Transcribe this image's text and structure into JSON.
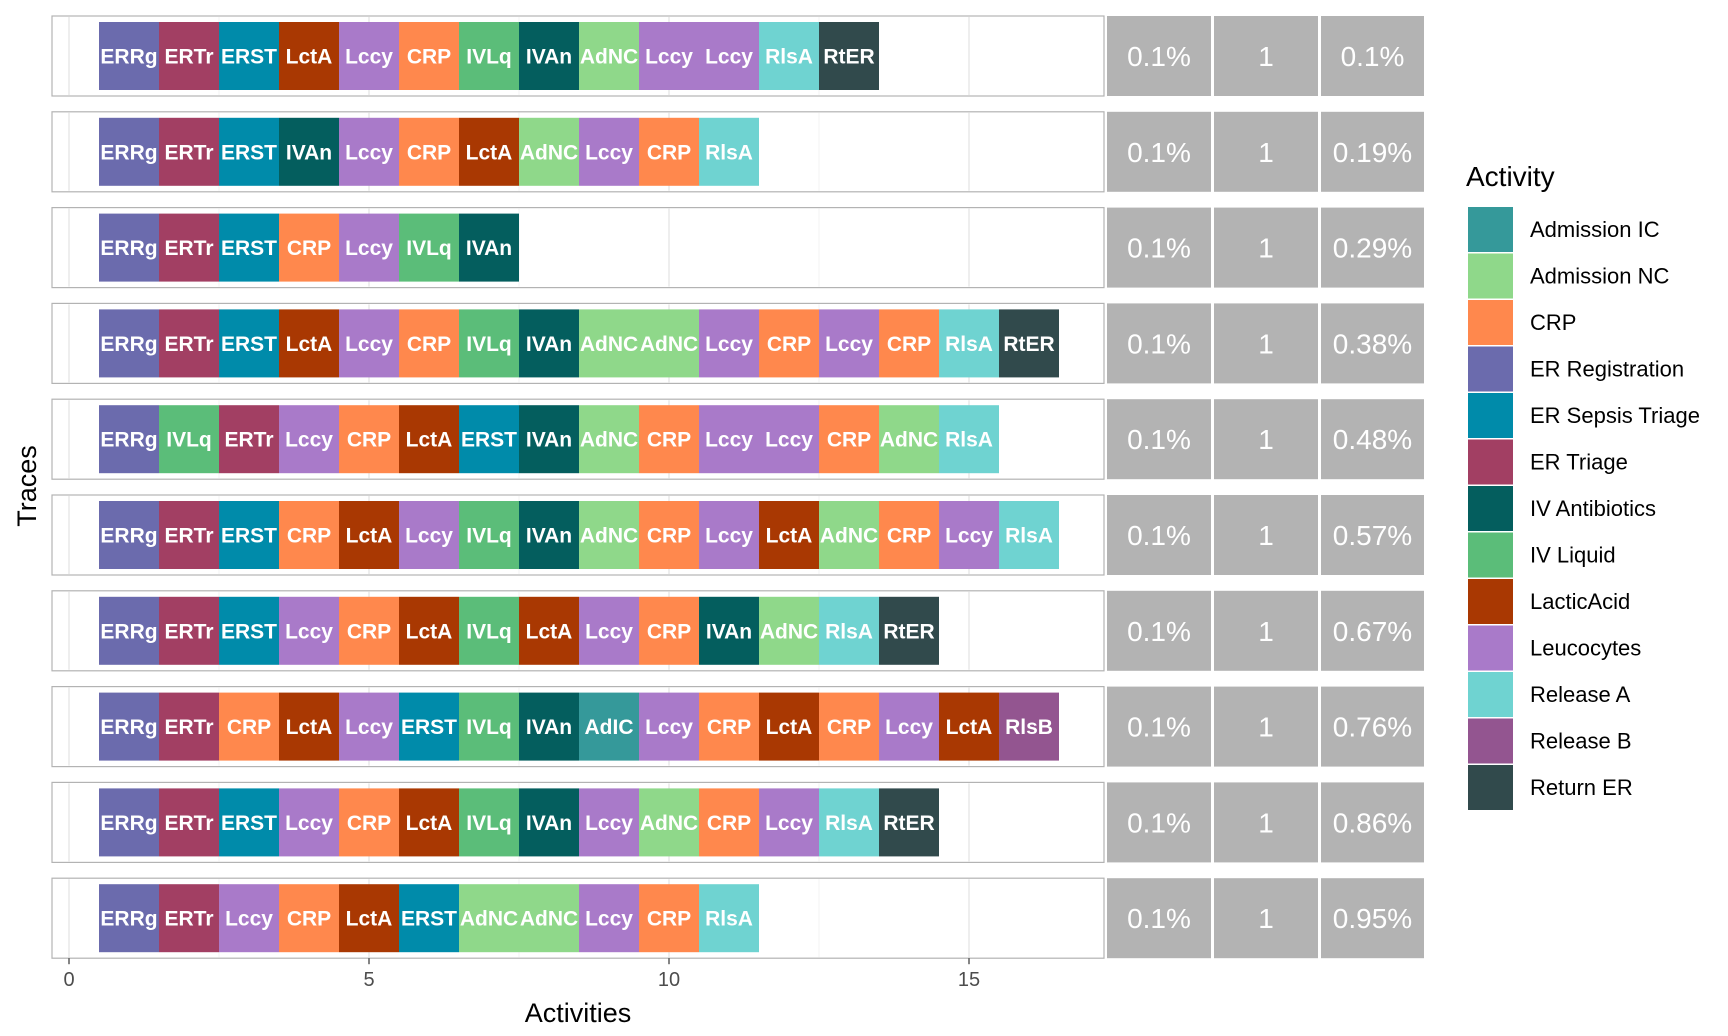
{
  "chart_data": {
    "type": "trace-explorer",
    "xlabel": "Activities",
    "ylabel": "Traces",
    "xlim": [
      -0.3,
      17.2
    ],
    "xticks": [
      0,
      5,
      10,
      15
    ],
    "grid": true,
    "legend_placement": "right",
    "legend": {
      "title": "Activity",
      "entries": [
        {
          "name": "Admission IC",
          "abbr": "AdIC",
          "color": "#35999A"
        },
        {
          "name": "Admission NC",
          "abbr": "AdNC",
          "color": "#8FD88A"
        },
        {
          "name": "CRP",
          "abbr": "CRP",
          "color": "#FF884D"
        },
        {
          "name": "ER Registration",
          "abbr": "ERRg",
          "color": "#6B6BAD"
        },
        {
          "name": "ER Sepsis Triage",
          "abbr": "ERST",
          "color": "#008BAA"
        },
        {
          "name": "ER Triage",
          "abbr": "ERTr",
          "color": "#A23F63"
        },
        {
          "name": "IV Antibiotics",
          "abbr": "IVAn",
          "color": "#045E5E"
        },
        {
          "name": "IV Liquid",
          "abbr": "IVLq",
          "color": "#5BBD79"
        },
        {
          "name": "LacticAcid",
          "abbr": "LctA",
          "color": "#A93802"
        },
        {
          "name": "Leucocytes",
          "abbr": "Lccy",
          "color": "#A97AC9"
        },
        {
          "name": "Release A",
          "abbr": "RlsA",
          "color": "#6FD3D1"
        },
        {
          "name": "Release B",
          "abbr": "RlsB",
          "color": "#935590"
        },
        {
          "name": "Return ER",
          "abbr": "RtER",
          "color": "#314A4C"
        }
      ]
    },
    "traces": [
      {
        "activities": [
          "ERRg",
          "ERTr",
          "ERST",
          "LctA",
          "Lccy",
          "CRP",
          "IVLq",
          "IVAn",
          "AdNC",
          "Lccy",
          "Lccy",
          "RlsA",
          "RtER"
        ],
        "relative_frequency": "0.1%",
        "absolute_frequency": "1",
        "cumulative": "0.1%"
      },
      {
        "activities": [
          "ERRg",
          "ERTr",
          "ERST",
          "IVAn",
          "Lccy",
          "CRP",
          "LctA",
          "AdNC",
          "Lccy",
          "CRP",
          "RlsA"
        ],
        "relative_frequency": "0.1%",
        "absolute_frequency": "1",
        "cumulative": "0.19%"
      },
      {
        "activities": [
          "ERRg",
          "ERTr",
          "ERST",
          "CRP",
          "Lccy",
          "IVLq",
          "IVAn"
        ],
        "relative_frequency": "0.1%",
        "absolute_frequency": "1",
        "cumulative": "0.29%"
      },
      {
        "activities": [
          "ERRg",
          "ERTr",
          "ERST",
          "LctA",
          "Lccy",
          "CRP",
          "IVLq",
          "IVAn",
          "AdNC",
          "AdNC",
          "Lccy",
          "CRP",
          "Lccy",
          "CRP",
          "RlsA",
          "RtER"
        ],
        "relative_frequency": "0.1%",
        "absolute_frequency": "1",
        "cumulative": "0.38%"
      },
      {
        "activities": [
          "ERRg",
          "IVLq",
          "ERTr",
          "Lccy",
          "CRP",
          "LctA",
          "ERST",
          "IVAn",
          "AdNC",
          "CRP",
          "Lccy",
          "Lccy",
          "CRP",
          "AdNC",
          "RlsA"
        ],
        "relative_frequency": "0.1%",
        "absolute_frequency": "1",
        "cumulative": "0.48%"
      },
      {
        "activities": [
          "ERRg",
          "ERTr",
          "ERST",
          "CRP",
          "LctA",
          "Lccy",
          "IVLq",
          "IVAn",
          "AdNC",
          "CRP",
          "Lccy",
          "LctA",
          "AdNC",
          "CRP",
          "Lccy",
          "RlsA"
        ],
        "relative_frequency": "0.1%",
        "absolute_frequency": "1",
        "cumulative": "0.57%"
      },
      {
        "activities": [
          "ERRg",
          "ERTr",
          "ERST",
          "Lccy",
          "CRP",
          "LctA",
          "IVLq",
          "LctA",
          "Lccy",
          "CRP",
          "IVAn",
          "AdNC",
          "RlsA",
          "RtER"
        ],
        "relative_frequency": "0.1%",
        "absolute_frequency": "1",
        "cumulative": "0.67%"
      },
      {
        "activities": [
          "ERRg",
          "ERTr",
          "CRP",
          "LctA",
          "Lccy",
          "ERST",
          "IVLq",
          "IVAn",
          "AdIC",
          "Lccy",
          "CRP",
          "LctA",
          "CRP",
          "Lccy",
          "LctA",
          "RlsB"
        ],
        "relative_frequency": "0.1%",
        "absolute_frequency": "1",
        "cumulative": "0.76%"
      },
      {
        "activities": [
          "ERRg",
          "ERTr",
          "ERST",
          "Lccy",
          "CRP",
          "LctA",
          "IVLq",
          "IVAn",
          "Lccy",
          "AdNC",
          "CRP",
          "Lccy",
          "RlsA",
          "RtER"
        ],
        "relative_frequency": "0.1%",
        "absolute_frequency": "1",
        "cumulative": "0.86%"
      },
      {
        "activities": [
          "ERRg",
          "ERTr",
          "Lccy",
          "CRP",
          "LctA",
          "ERST",
          "AdNC",
          "AdNC",
          "Lccy",
          "CRP",
          "RlsA"
        ],
        "relative_frequency": "0.1%",
        "absolute_frequency": "1",
        "cumulative": "0.95%"
      }
    ]
  }
}
